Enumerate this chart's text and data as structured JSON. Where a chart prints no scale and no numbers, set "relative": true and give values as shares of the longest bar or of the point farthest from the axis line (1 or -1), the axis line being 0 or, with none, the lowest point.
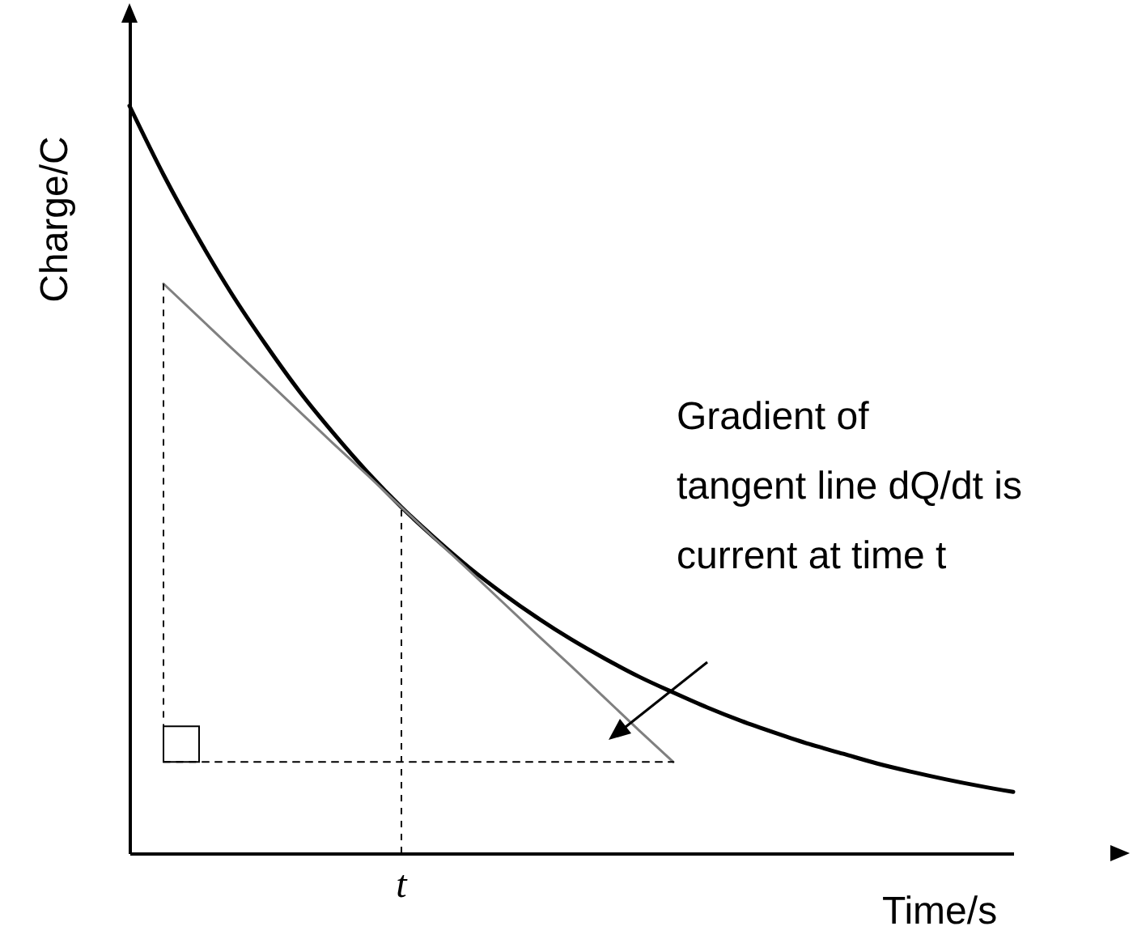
{
  "chart_data": {
    "type": "line",
    "relative": true,
    "xlabel": "Time/s",
    "ylabel": "Charge/C",
    "categories": [
      null,
      null,
      null,
      null,
      null,
      null,
      null,
      null,
      null,
      null,
      null,
      null,
      null,
      null,
      null,
      null,
      null,
      null,
      null,
      null,
      null,
      null,
      null,
      null,
      null,
      null,
      null
    ],
    "series": [
      {
        "color": "#000000",
        "values": [
          1,
          0.908,
          0.825,
          0.749,
          0.681,
          0.618,
          0.562,
          0.51,
          0.463,
          0.421,
          0.382,
          0.347,
          0.315,
          0.286,
          0.26,
          0.236,
          0.215,
          0.195,
          0.177,
          0.161,
          0.146,
          0.133,
          0.12,
          0.109,
          0.099,
          0.09,
          0.082
        ]
      },
      {
        "color": "#808080",
        "values": [
          null,
          0.762,
          0.719,
          0.676,
          0.634,
          0.591,
          0.548,
          0.506,
          0.463,
          0.42,
          0.378,
          0.335,
          0.292,
          0.25,
          0.207,
          0.164,
          0.122,
          null,
          null,
          null,
          null,
          null,
          null,
          null,
          null,
          null,
          null
        ]
      },
      {
        "color": "#000000",
        "line_style": "dashed",
        "values": [
          null,
          0.122,
          0.122,
          0.122,
          0.122,
          0.122,
          0.122,
          0.122,
          0.122,
          0.122,
          0.122,
          0.122,
          0.122,
          0.122,
          0.122,
          0.122,
          0.122,
          null,
          null,
          null,
          null,
          null,
          null,
          null,
          null,
          null,
          null
        ]
      }
    ],
    "ref_lines": [
      {
        "axis": "x",
        "value": "t",
        "line_style": "dashed"
      }
    ],
    "annotations": [
      "Gradient of",
      "tangent line dQ/dt is",
      "current at time t"
    ],
    "grid": false,
    "marker": "none",
    "line_style": "solid"
  }
}
